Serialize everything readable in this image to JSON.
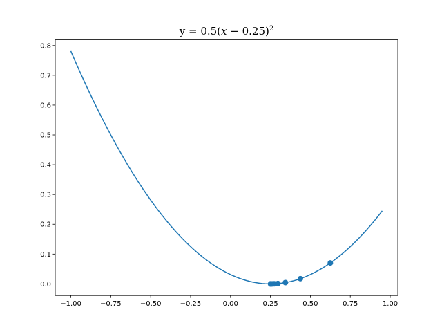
{
  "chart_data": {
    "type": "line",
    "title": {
      "prefix": "y = 0.5(",
      "x": "x",
      "middle": " − 0.25)",
      "exponent": "2"
    },
    "xlabel": "",
    "ylabel": "",
    "xlim": [
      -1.0975,
      1.0475
    ],
    "ylim": [
      -0.039,
      0.819
    ],
    "xticks": [
      -1.0,
      -0.75,
      -0.5,
      -0.25,
      0.0,
      0.25,
      0.5,
      0.75,
      1.0
    ],
    "xtick_labels": [
      "−1.00",
      "−0.75",
      "−0.50",
      "−0.25",
      "0.00",
      "0.25",
      "0.50",
      "0.75",
      "1.00"
    ],
    "yticks": [
      0.0,
      0.1,
      0.2,
      0.3,
      0.4,
      0.5,
      0.6,
      0.7,
      0.8
    ],
    "ytick_labels": [
      "0.0",
      "0.1",
      "0.2",
      "0.3",
      "0.4",
      "0.5",
      "0.6",
      "0.7",
      "0.8"
    ],
    "grid": false,
    "series": [
      {
        "kind": "line",
        "color": "#1f77b4",
        "function": "0.5*(x-0.25)^2",
        "x_range": [
          -1.0,
          0.95
        ]
      },
      {
        "kind": "scatter",
        "color": "#1f77b4",
        "x": [
          0.625,
          0.4375,
          0.34375,
          0.296875,
          0.2734375,
          0.26171875,
          0.255859375,
          0.2529296875,
          0.25146484375,
          0.250732421875
        ],
        "y": [
          0.0703,
          0.0176,
          0.0044,
          0.0011,
          0.0003,
          0.0001,
          0.0,
          0.0,
          0.0,
          0.0
        ]
      }
    ]
  }
}
